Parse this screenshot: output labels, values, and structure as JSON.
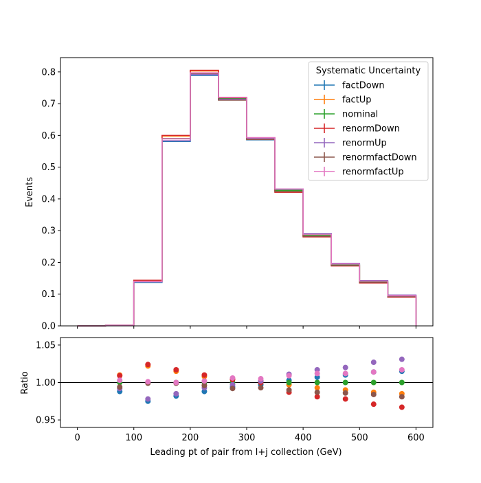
{
  "chart_data": [
    {
      "type": "step",
      "title": "",
      "xlabel": "",
      "ylabel": "Events",
      "xlim": [
        -30,
        630
      ],
      "ylim": [
        0,
        0.845
      ],
      "xticks": [
        0,
        100,
        200,
        300,
        400,
        500,
        600
      ],
      "yticks": [
        "0.0",
        "0.1",
        "0.2",
        "0.3",
        "0.4",
        "0.5",
        "0.6",
        "0.7",
        "0.8"
      ],
      "bin_edges": [
        0,
        50,
        100,
        150,
        200,
        250,
        300,
        350,
        400,
        450,
        500,
        550,
        600
      ],
      "legend": {
        "title": "Systematic Uncertainty",
        "position": "top-right"
      },
      "series": [
        {
          "name": "factDown",
          "color": "#1f77b4",
          "values": [
            0.0,
            0.002,
            0.137,
            0.581,
            0.789,
            0.712,
            0.586,
            0.428,
            0.287,
            0.195,
            0.141,
            0.095
          ]
        },
        {
          "name": "factUp",
          "color": "#ff7f0e",
          "values": [
            0.0,
            0.002,
            0.143,
            0.598,
            0.803,
            0.72,
            0.591,
            0.424,
            0.282,
            0.19,
            0.137,
            0.092
          ]
        },
        {
          "name": "nominal",
          "color": "#2ca02c",
          "values": [
            0.0,
            0.002,
            0.14,
            0.59,
            0.796,
            0.716,
            0.59,
            0.427,
            0.285,
            0.193,
            0.139,
            0.094
          ]
        },
        {
          "name": "renormDown",
          "color": "#d62728",
          "values": [
            0.0,
            0.002,
            0.144,
            0.6,
            0.805,
            0.719,
            0.59,
            0.421,
            0.28,
            0.189,
            0.135,
            0.091
          ]
        },
        {
          "name": "renormUp",
          "color": "#9467bd",
          "values": [
            0.0,
            0.002,
            0.139,
            0.583,
            0.792,
            0.714,
            0.591,
            0.431,
            0.29,
            0.197,
            0.143,
            0.097
          ]
        },
        {
          "name": "renormfactDown",
          "color": "#8c564b",
          "values": [
            0.0,
            0.002,
            0.14,
            0.59,
            0.795,
            0.711,
            0.587,
            0.423,
            0.282,
            0.19,
            0.137,
            0.092
          ]
        },
        {
          "name": "renormfactUp",
          "color": "#e377c2",
          "values": [
            0.0,
            0.002,
            0.14,
            0.589,
            0.797,
            0.72,
            0.593,
            0.431,
            0.288,
            0.195,
            0.141,
            0.095
          ]
        }
      ]
    },
    {
      "type": "scatter",
      "title": "",
      "xlabel": "Leading pt of pair from l+j collection (GeV)",
      "ylabel": "Ratio",
      "xlim": [
        -30,
        630
      ],
      "ylim": [
        0.94,
        1.06
      ],
      "xticks": [
        0,
        100,
        200,
        300,
        400,
        500,
        600
      ],
      "yticks": [
        "0.95",
        "1.00",
        "1.05"
      ],
      "reference_line": 1.0,
      "x": [
        75,
        125,
        175,
        225,
        275,
        325,
        375,
        425,
        475,
        525,
        575
      ],
      "series": [
        {
          "name": "factDown",
          "color": "#1f77b4",
          "values": [
            0.988,
            0.975,
            0.982,
            0.988,
            0.994,
            0.997,
            1.003,
            1.007,
            1.01,
            1.014,
            1.015
          ]
        },
        {
          "name": "factUp",
          "color": "#ff7f0e",
          "values": [
            1.01,
            1.022,
            1.015,
            1.008,
            1.005,
            1.002,
            0.997,
            0.993,
            0.99,
            0.987,
            0.985
          ]
        },
        {
          "name": "nominal",
          "color": "#2ca02c",
          "values": [
            1.0,
            1.0,
            1.0,
            1.0,
            1.0,
            1.0,
            1.0,
            1.0,
            1.0,
            1.0,
            1.0
          ]
        },
        {
          "name": "renormDown",
          "color": "#d62728",
          "values": [
            1.009,
            1.024,
            1.017,
            1.01,
            1.004,
            1.0,
            0.987,
            0.981,
            0.978,
            0.971,
            0.967
          ]
        },
        {
          "name": "renormUp",
          "color": "#9467bd",
          "values": [
            0.992,
            0.978,
            0.985,
            0.993,
            0.997,
            1.002,
            1.011,
            1.017,
            1.02,
            1.027,
            1.031
          ]
        },
        {
          "name": "renormfactDown",
          "color": "#8c564b",
          "values": [
            0.994,
            0.999,
            0.999,
            0.996,
            0.992,
            0.993,
            0.99,
            0.987,
            0.986,
            0.984,
            0.981
          ]
        },
        {
          "name": "renormfactUp",
          "color": "#e377c2",
          "values": [
            1.003,
            1.001,
            1.0,
            1.002,
            1.006,
            1.005,
            1.009,
            1.012,
            1.012,
            1.014,
            1.017
          ]
        }
      ]
    }
  ]
}
